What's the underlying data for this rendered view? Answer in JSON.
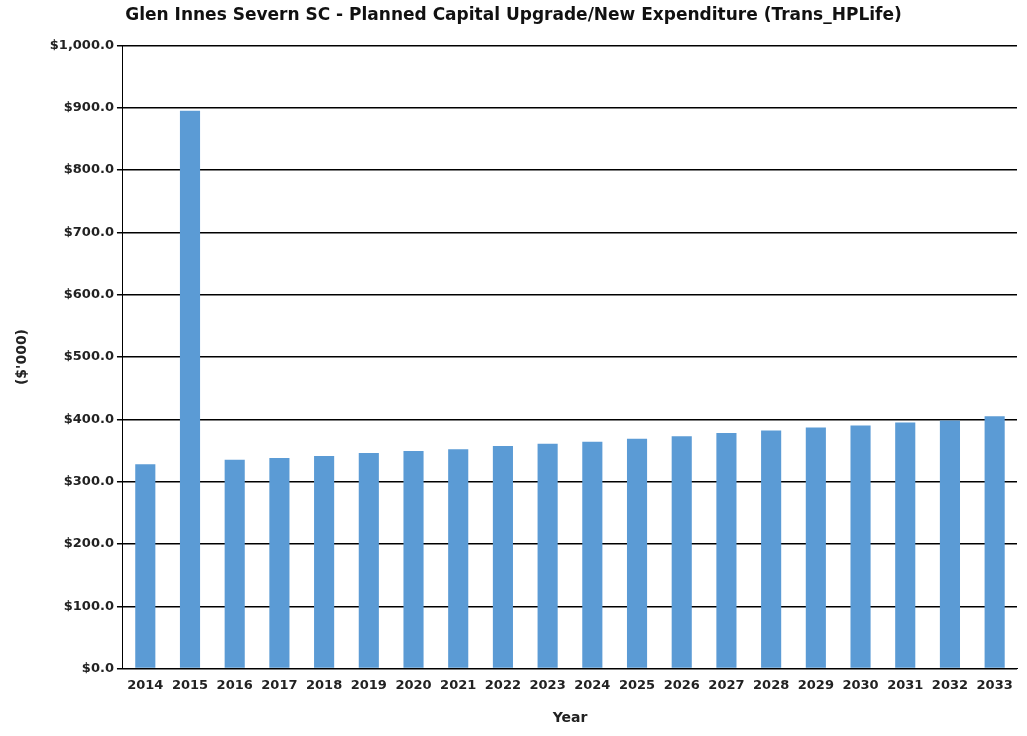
{
  "chart_data": {
    "type": "bar",
    "title": "Glen Innes Severn SC - Planned Capital Upgrade/New Expenditure (Trans_HPLife)",
    "xlabel": "Year",
    "ylabel": "($'000)",
    "categories": [
      "2014",
      "2015",
      "2016",
      "2017",
      "2018",
      "2019",
      "2020",
      "2021",
      "2022",
      "2023",
      "2024",
      "2025",
      "2026",
      "2027",
      "2028",
      "2029",
      "2030",
      "2031",
      "2032",
      "2033"
    ],
    "values": [
      328,
      895,
      335,
      338,
      341,
      346,
      349,
      352,
      357,
      361,
      364,
      369,
      373,
      378,
      382,
      387,
      390,
      395,
      398,
      405
    ],
    "color": "#5b9bd5",
    "ylim": [
      0,
      1000
    ],
    "yticks": [
      {
        "value": 0,
        "label": "$0.0"
      },
      {
        "value": 100,
        "label": "$100.0"
      },
      {
        "value": 200,
        "label": "$200.0"
      },
      {
        "value": 300,
        "label": "$300.0"
      },
      {
        "value": 400,
        "label": "$400.0"
      },
      {
        "value": 500,
        "label": "$500.0"
      },
      {
        "value": 600,
        "label": "$600.0"
      },
      {
        "value": 700,
        "label": "$700.0"
      },
      {
        "value": 800,
        "label": "$800.0"
      },
      {
        "value": 900,
        "label": "$900.0"
      },
      {
        "value": 1000,
        "label": "$1,000.0"
      }
    ],
    "grid": "y",
    "legend": false
  }
}
